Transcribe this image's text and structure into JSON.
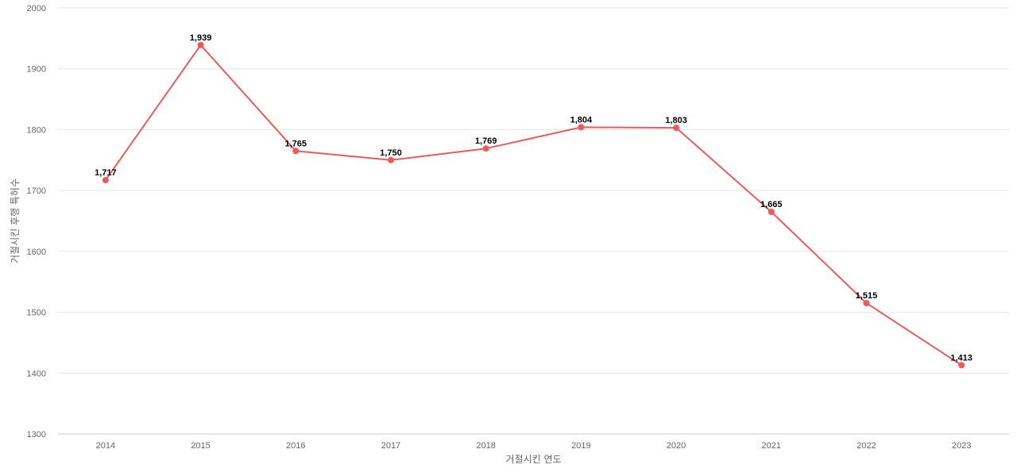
{
  "chart_data": {
    "type": "line",
    "title": "",
    "xlabel": "거절시킨 연도",
    "ylabel": "거절시킨 후행 특허수",
    "categories": [
      "2014",
      "2015",
      "2016",
      "2017",
      "2018",
      "2019",
      "2020",
      "2021",
      "2022",
      "2023"
    ],
    "series": [
      {
        "values": [
          1717,
          1939,
          1765,
          1750,
          1769,
          1804,
          1803,
          1665,
          1515,
          1413
        ],
        "data_labels": [
          "1,717",
          "1,939",
          "1,765",
          "1,750",
          "1,769",
          "1,804",
          "1,803",
          "1,665",
          "1,515",
          "1,413"
        ],
        "color": "#ee5a5a"
      }
    ],
    "ylim": [
      1300,
      2000
    ],
    "yticks": [
      "1300",
      "1400",
      "1500",
      "1600",
      "1700",
      "1800",
      "1900",
      "2000"
    ],
    "grid": true,
    "legend": "none"
  }
}
